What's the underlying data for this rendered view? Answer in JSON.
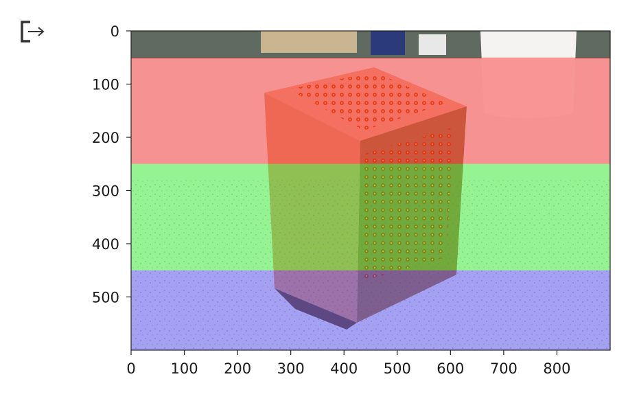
{
  "output_icon": {
    "name": "output-redirect-icon"
  },
  "chart_data": {
    "type": "image",
    "title": "",
    "xlabel": "",
    "ylabel": "",
    "xlim": [
      0,
      900
    ],
    "ylim": [
      600,
      0
    ],
    "xticks": [
      0,
      100,
      200,
      300,
      400,
      500,
      600,
      700,
      800
    ],
    "yticks": [
      0,
      100,
      200,
      300,
      400,
      500
    ],
    "overlay_bands": [
      {
        "name": "red",
        "color": "#ff0000",
        "y_start": 50,
        "y_end": 250
      },
      {
        "name": "green",
        "color": "#00ff00",
        "y_start": 250,
        "y_end": 450
      },
      {
        "name": "blue",
        "color": "#0000ff",
        "y_start": 450,
        "y_end": 600
      }
    ],
    "image_subject": "wooden storage cube on speckled floor"
  }
}
